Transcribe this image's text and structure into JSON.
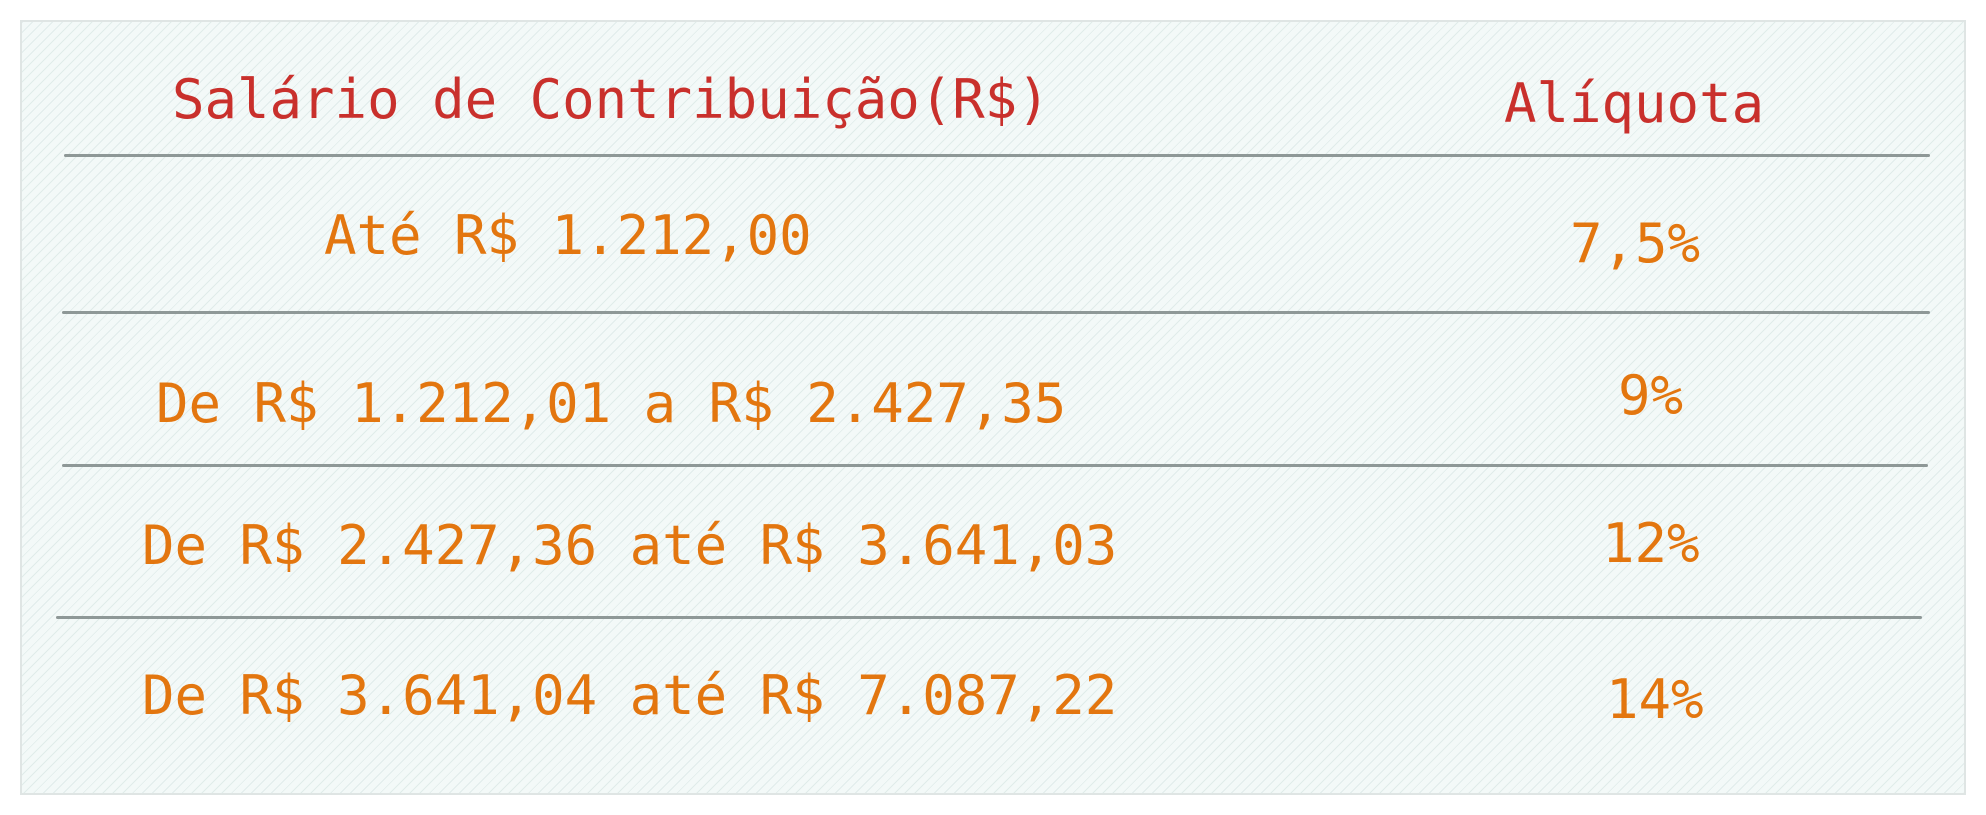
{
  "table": {
    "headers": [
      "Salário de Contribuição(R$)",
      "Alíquota"
    ],
    "rows": [
      {
        "range": "Até R$ 1.212,00",
        "rate": "7,5%"
      },
      {
        "range": "De R$ 1.212,01 a R$ 2.427,35",
        "rate": "9%"
      },
      {
        "range": "De R$ 2.427,36 até R$ 3.641,03",
        "rate": "12%"
      },
      {
        "range": "De R$ 3.641,04 até R$ 7.087,22",
        "rate": "14%"
      }
    ]
  },
  "colors": {
    "header_text": "#c9302c",
    "value_text": "#e3760f",
    "rule": "#8e9897",
    "background": "#f3f9f8"
  }
}
